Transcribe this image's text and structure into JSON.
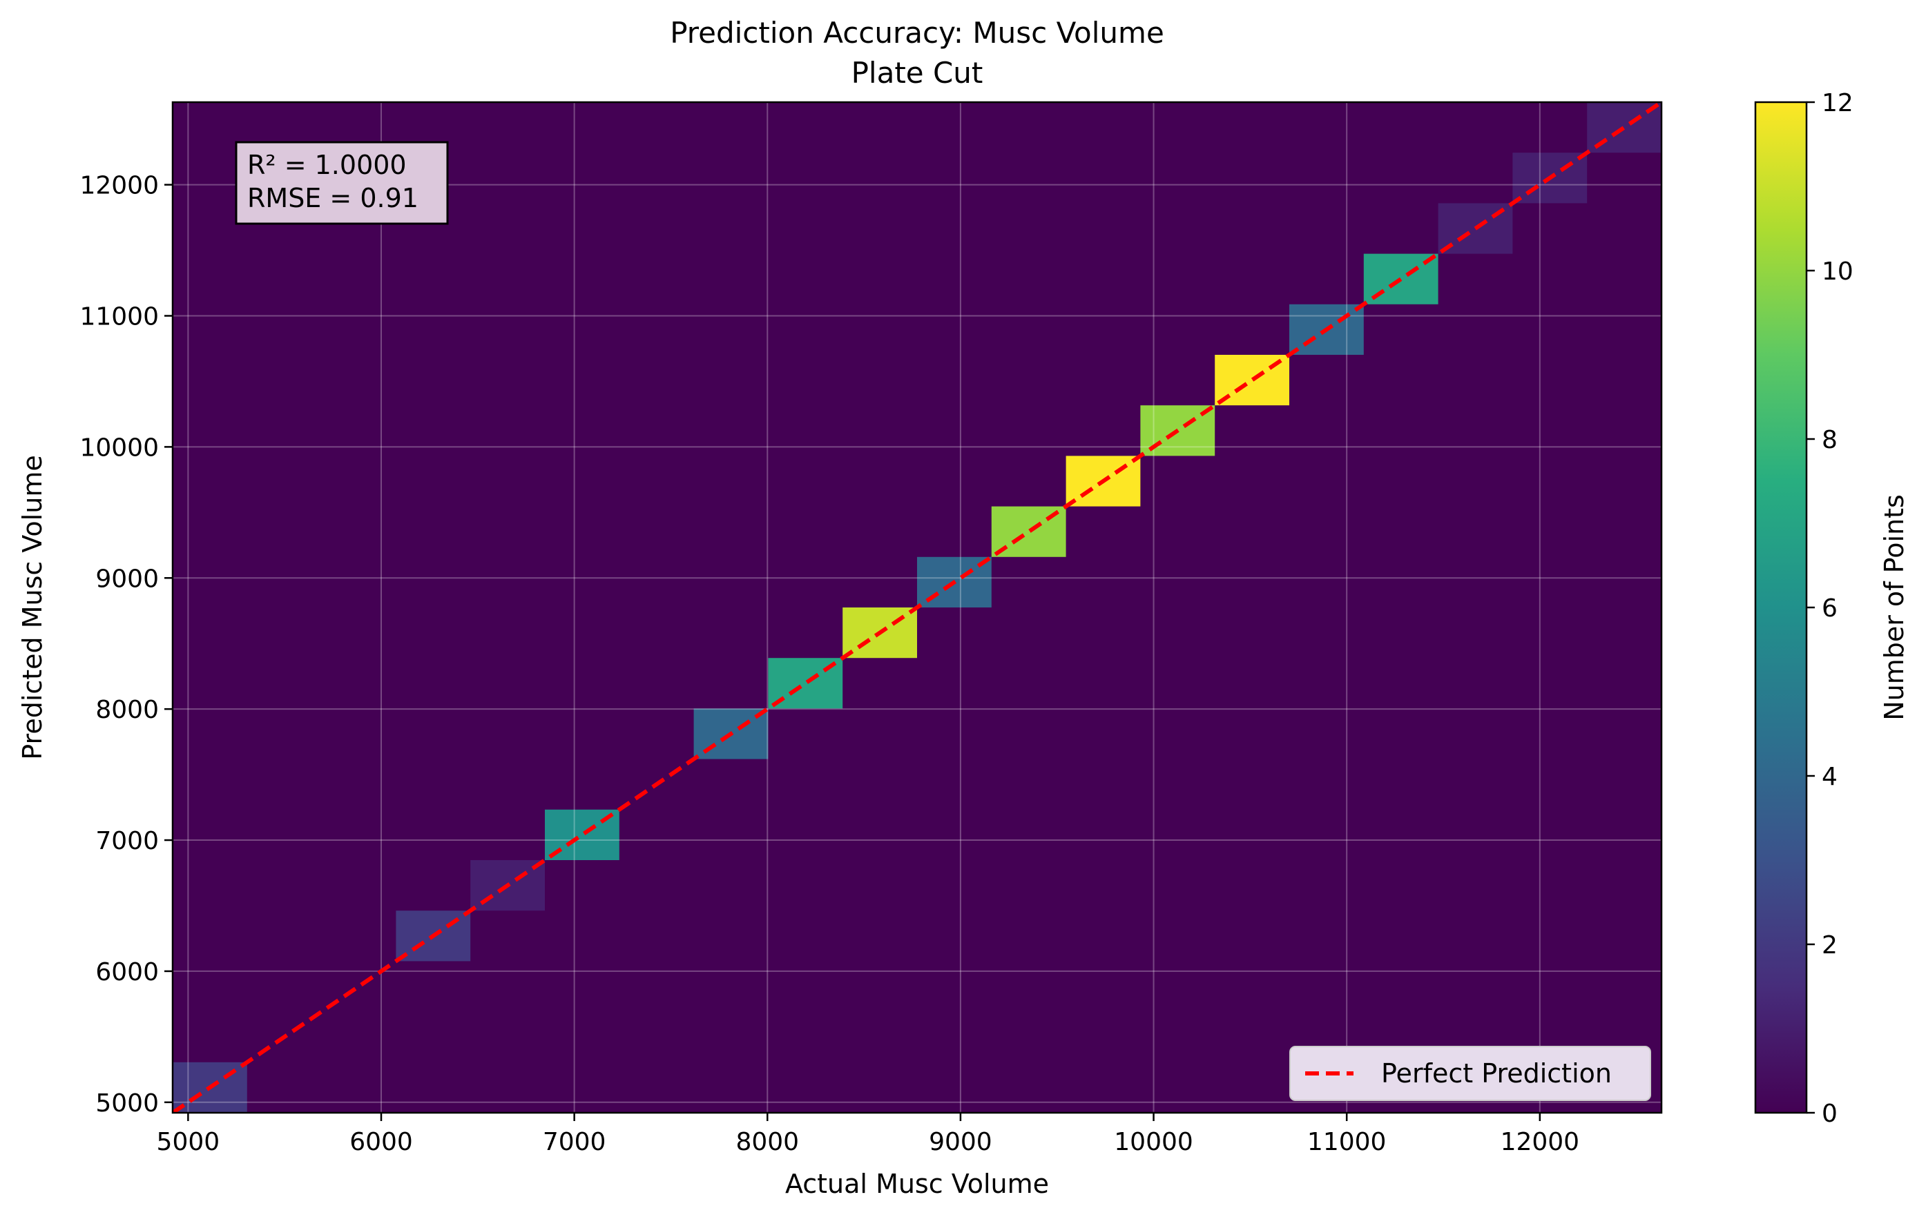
{
  "chart_data": {
    "type": "heatmap",
    "title": "Prediction Accuracy: Musc Volume",
    "subtitle": "Plate Cut",
    "xlabel": "Actual Musc Volume",
    "ylabel": "Predicted Musc Volume",
    "xlim": [
      4920,
      12630
    ],
    "ylim": [
      4920,
      12630
    ],
    "x_ticks": [
      5000,
      6000,
      7000,
      8000,
      9000,
      10000,
      11000,
      12000
    ],
    "y_ticks": [
      5000,
      6000,
      7000,
      8000,
      9000,
      10000,
      11000,
      12000
    ],
    "grid": true,
    "colormap": "viridis",
    "colorbar": {
      "label": "Number of Points",
      "range": [
        0,
        12
      ],
      "ticks": [
        0,
        2,
        4,
        6,
        8,
        10,
        12
      ]
    },
    "bin_width": 385.5,
    "bins": [
      {
        "x": [
          4920,
          5305.5
        ],
        "y": [
          4920,
          5305.5
        ],
        "count": 2
      },
      {
        "x": [
          6076.5,
          6462
        ],
        "y": [
          6076.5,
          6462
        ],
        "count": 2
      },
      {
        "x": [
          6462,
          6847.5
        ],
        "y": [
          6462,
          6847.5
        ],
        "count": 1
      },
      {
        "x": [
          6847.5,
          7233
        ],
        "y": [
          6847.5,
          7233
        ],
        "count": 6
      },
      {
        "x": [
          7618.5,
          8004
        ],
        "y": [
          7618.5,
          8004
        ],
        "count": 4
      },
      {
        "x": [
          8004,
          8389.5
        ],
        "y": [
          8004,
          8389.5
        ],
        "count": 7
      },
      {
        "x": [
          8389.5,
          8775
        ],
        "y": [
          8389.5,
          8775
        ],
        "count": 11
      },
      {
        "x": [
          8775,
          9160.5
        ],
        "y": [
          8775,
          9160.5
        ],
        "count": 4
      },
      {
        "x": [
          9160.5,
          9546
        ],
        "y": [
          9160.5,
          9546
        ],
        "count": 10
      },
      {
        "x": [
          9546,
          9931.5
        ],
        "y": [
          9546,
          9931.5
        ],
        "count": 12
      },
      {
        "x": [
          9931.5,
          10317
        ],
        "y": [
          9931.5,
          10317
        ],
        "count": 10
      },
      {
        "x": [
          10317,
          10702.5
        ],
        "y": [
          10317,
          10702.5
        ],
        "count": 12
      },
      {
        "x": [
          10702.5,
          11088
        ],
        "y": [
          10702.5,
          11088
        ],
        "count": 4
      },
      {
        "x": [
          11088,
          11473.5
        ],
        "y": [
          11088,
          11473.5
        ],
        "count": 7
      },
      {
        "x": [
          11473.5,
          11859
        ],
        "y": [
          11473.5,
          11859
        ],
        "count": 1
      },
      {
        "x": [
          11859,
          12244.5
        ],
        "y": [
          11859,
          12244.5
        ],
        "count": 1
      },
      {
        "x": [
          12244.5,
          12630
        ],
        "y": [
          12244.5,
          12630
        ],
        "count": 1
      }
    ],
    "reference_line": {
      "name": "Perfect Prediction",
      "x": [
        4920,
        12630
      ],
      "y": [
        4920,
        12630
      ],
      "color": "#ff0000",
      "style": "dashed"
    },
    "legend": {
      "placement": "lower-right",
      "entries": [
        "Perfect Prediction"
      ]
    },
    "annotation": {
      "lines": [
        "R² = 1.0000",
        "RMSE = 0.91"
      ],
      "placement": "top-left"
    }
  }
}
